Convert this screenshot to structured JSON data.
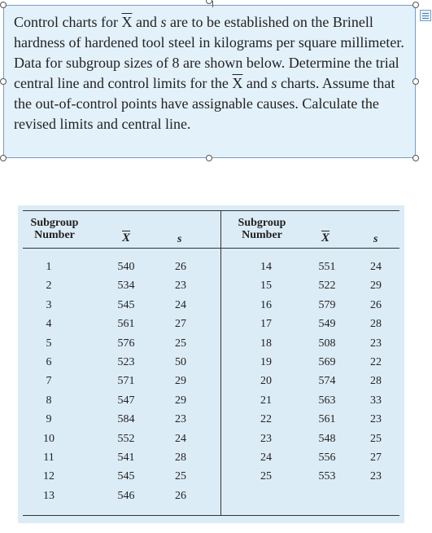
{
  "question": {
    "segments": [
      "Control charts for ",
      "X",
      " and ",
      "s",
      " are to be established on the Brinell hardness of hardened tool steel in kilograms per square millimeter. Data for subgroup sizes of 8 are shown below. Determine the trial central line and control limits for the ",
      "X",
      " and ",
      "s",
      " charts. Assume that the out-of-control points have assignable causes. Calculate the revised limits and central line."
    ]
  },
  "table": {
    "headers": {
      "subgroup_number": "Subgroup Number",
      "xbar": "X",
      "s": "s"
    },
    "left_rows": [
      {
        "subgroup": "1",
        "xbar": "540",
        "s": "26"
      },
      {
        "subgroup": "2",
        "xbar": "534",
        "s": "23"
      },
      {
        "subgroup": "3",
        "xbar": "545",
        "s": "24"
      },
      {
        "subgroup": "4",
        "xbar": "561",
        "s": "27"
      },
      {
        "subgroup": "5",
        "xbar": "576",
        "s": "25"
      },
      {
        "subgroup": "6",
        "xbar": "523",
        "s": "50"
      },
      {
        "subgroup": "7",
        "xbar": "571",
        "s": "29"
      },
      {
        "subgroup": "8",
        "xbar": "547",
        "s": "29"
      },
      {
        "subgroup": "9",
        "xbar": "584",
        "s": "23"
      },
      {
        "subgroup": "10",
        "xbar": "552",
        "s": "24"
      },
      {
        "subgroup": "11",
        "xbar": "541",
        "s": "28"
      },
      {
        "subgroup": "12",
        "xbar": "545",
        "s": "25"
      },
      {
        "subgroup": "13",
        "xbar": "546",
        "s": "26"
      }
    ],
    "right_rows": [
      {
        "subgroup": "14",
        "xbar": "551",
        "s": "24"
      },
      {
        "subgroup": "15",
        "xbar": "522",
        "s": "29"
      },
      {
        "subgroup": "16",
        "xbar": "579",
        "s": "26"
      },
      {
        "subgroup": "17",
        "xbar": "549",
        "s": "28"
      },
      {
        "subgroup": "18",
        "xbar": "508",
        "s": "23"
      },
      {
        "subgroup": "19",
        "xbar": "569",
        "s": "22"
      },
      {
        "subgroup": "20",
        "xbar": "574",
        "s": "28"
      },
      {
        "subgroup": "21",
        "xbar": "563",
        "s": "33"
      },
      {
        "subgroup": "22",
        "xbar": "561",
        "s": "23"
      },
      {
        "subgroup": "23",
        "xbar": "548",
        "s": "25"
      },
      {
        "subgroup": "24",
        "xbar": "556",
        "s": "27"
      },
      {
        "subgroup": "25",
        "xbar": "553",
        "s": "23"
      }
    ]
  }
}
